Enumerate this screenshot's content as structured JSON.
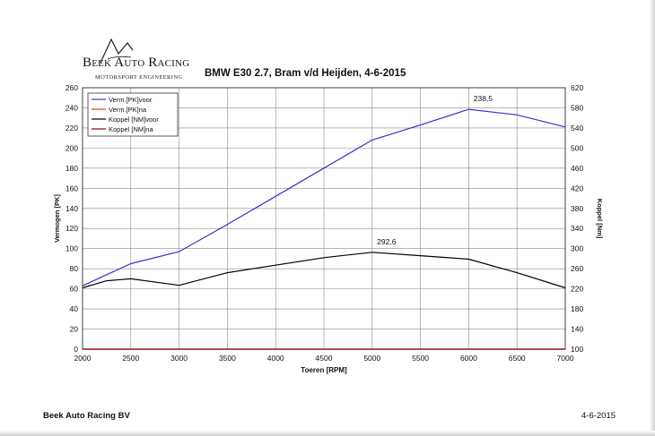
{
  "brand": {
    "name": "Beek Auto Racing",
    "tagline": "MOTORSPORT ENGINEERING"
  },
  "footer": {
    "company": "Beek Auto Racing BV",
    "date": "4-6-2015"
  },
  "chart_data": {
    "type": "line",
    "title": "BMW E30 2.7, Bram v/d Heijden, 4-6-2015",
    "xlabel": "Toeren [RPM]",
    "ylabel": "Vermogen [PK]",
    "y2label": "Koppel [Nm]",
    "xlim": [
      2000,
      7000
    ],
    "ylim": [
      0,
      260
    ],
    "y2lim": [
      100,
      620
    ],
    "grid": true,
    "legend_position": "top-left",
    "x_ticks": [
      "2000",
      "2500",
      "3000",
      "3500",
      "4000",
      "4500",
      "5000",
      "5500",
      "6000",
      "6500",
      "7000"
    ],
    "y_ticks": [
      "0",
      "20",
      "40",
      "60",
      "80",
      "100",
      "120",
      "140",
      "160",
      "180",
      "200",
      "220",
      "240",
      "260"
    ],
    "y2_ticks": [
      "100",
      "140",
      "180",
      "220",
      "260",
      "300",
      "340",
      "380",
      "420",
      "460",
      "500",
      "540",
      "580",
      "620"
    ],
    "series": [
      {
        "name": "Verm.[PK]voor",
        "axis": "left",
        "color": "#3535c8",
        "x": [
          2000,
          2500,
          3000,
          3500,
          4000,
          4500,
          5000,
          5500,
          6000,
          6500,
          7000
        ],
        "values": [
          63,
          85,
          97,
          124,
          152,
          180,
          208,
          223,
          238.5,
          233,
          221
        ]
      },
      {
        "name": "Verm.[PK]na",
        "axis": "left",
        "color": "#e8341c",
        "x": [
          2000,
          7000
        ],
        "values": [
          0,
          0
        ]
      },
      {
        "name": "Koppel [NM]voor",
        "axis": "right",
        "color": "#000000",
        "x": [
          2000,
          2250,
          2500,
          3000,
          3500,
          4000,
          4500,
          5000,
          5500,
          6000,
          6500,
          7000
        ],
        "values": [
          222,
          236,
          240,
          227,
          252,
          267,
          282,
          292.6,
          286,
          279,
          252,
          222
        ]
      },
      {
        "name": "Koppel [NM]na",
        "axis": "right",
        "color": "#8b0000",
        "x": [
          2000,
          7000
        ],
        "values": [
          100,
          100
        ]
      }
    ],
    "annotations": [
      {
        "text": "238,5",
        "x": 6000,
        "value": 238.5,
        "axis": "left"
      },
      {
        "text": "292,6",
        "x": 5000,
        "value": 292.6,
        "axis": "right"
      }
    ]
  }
}
